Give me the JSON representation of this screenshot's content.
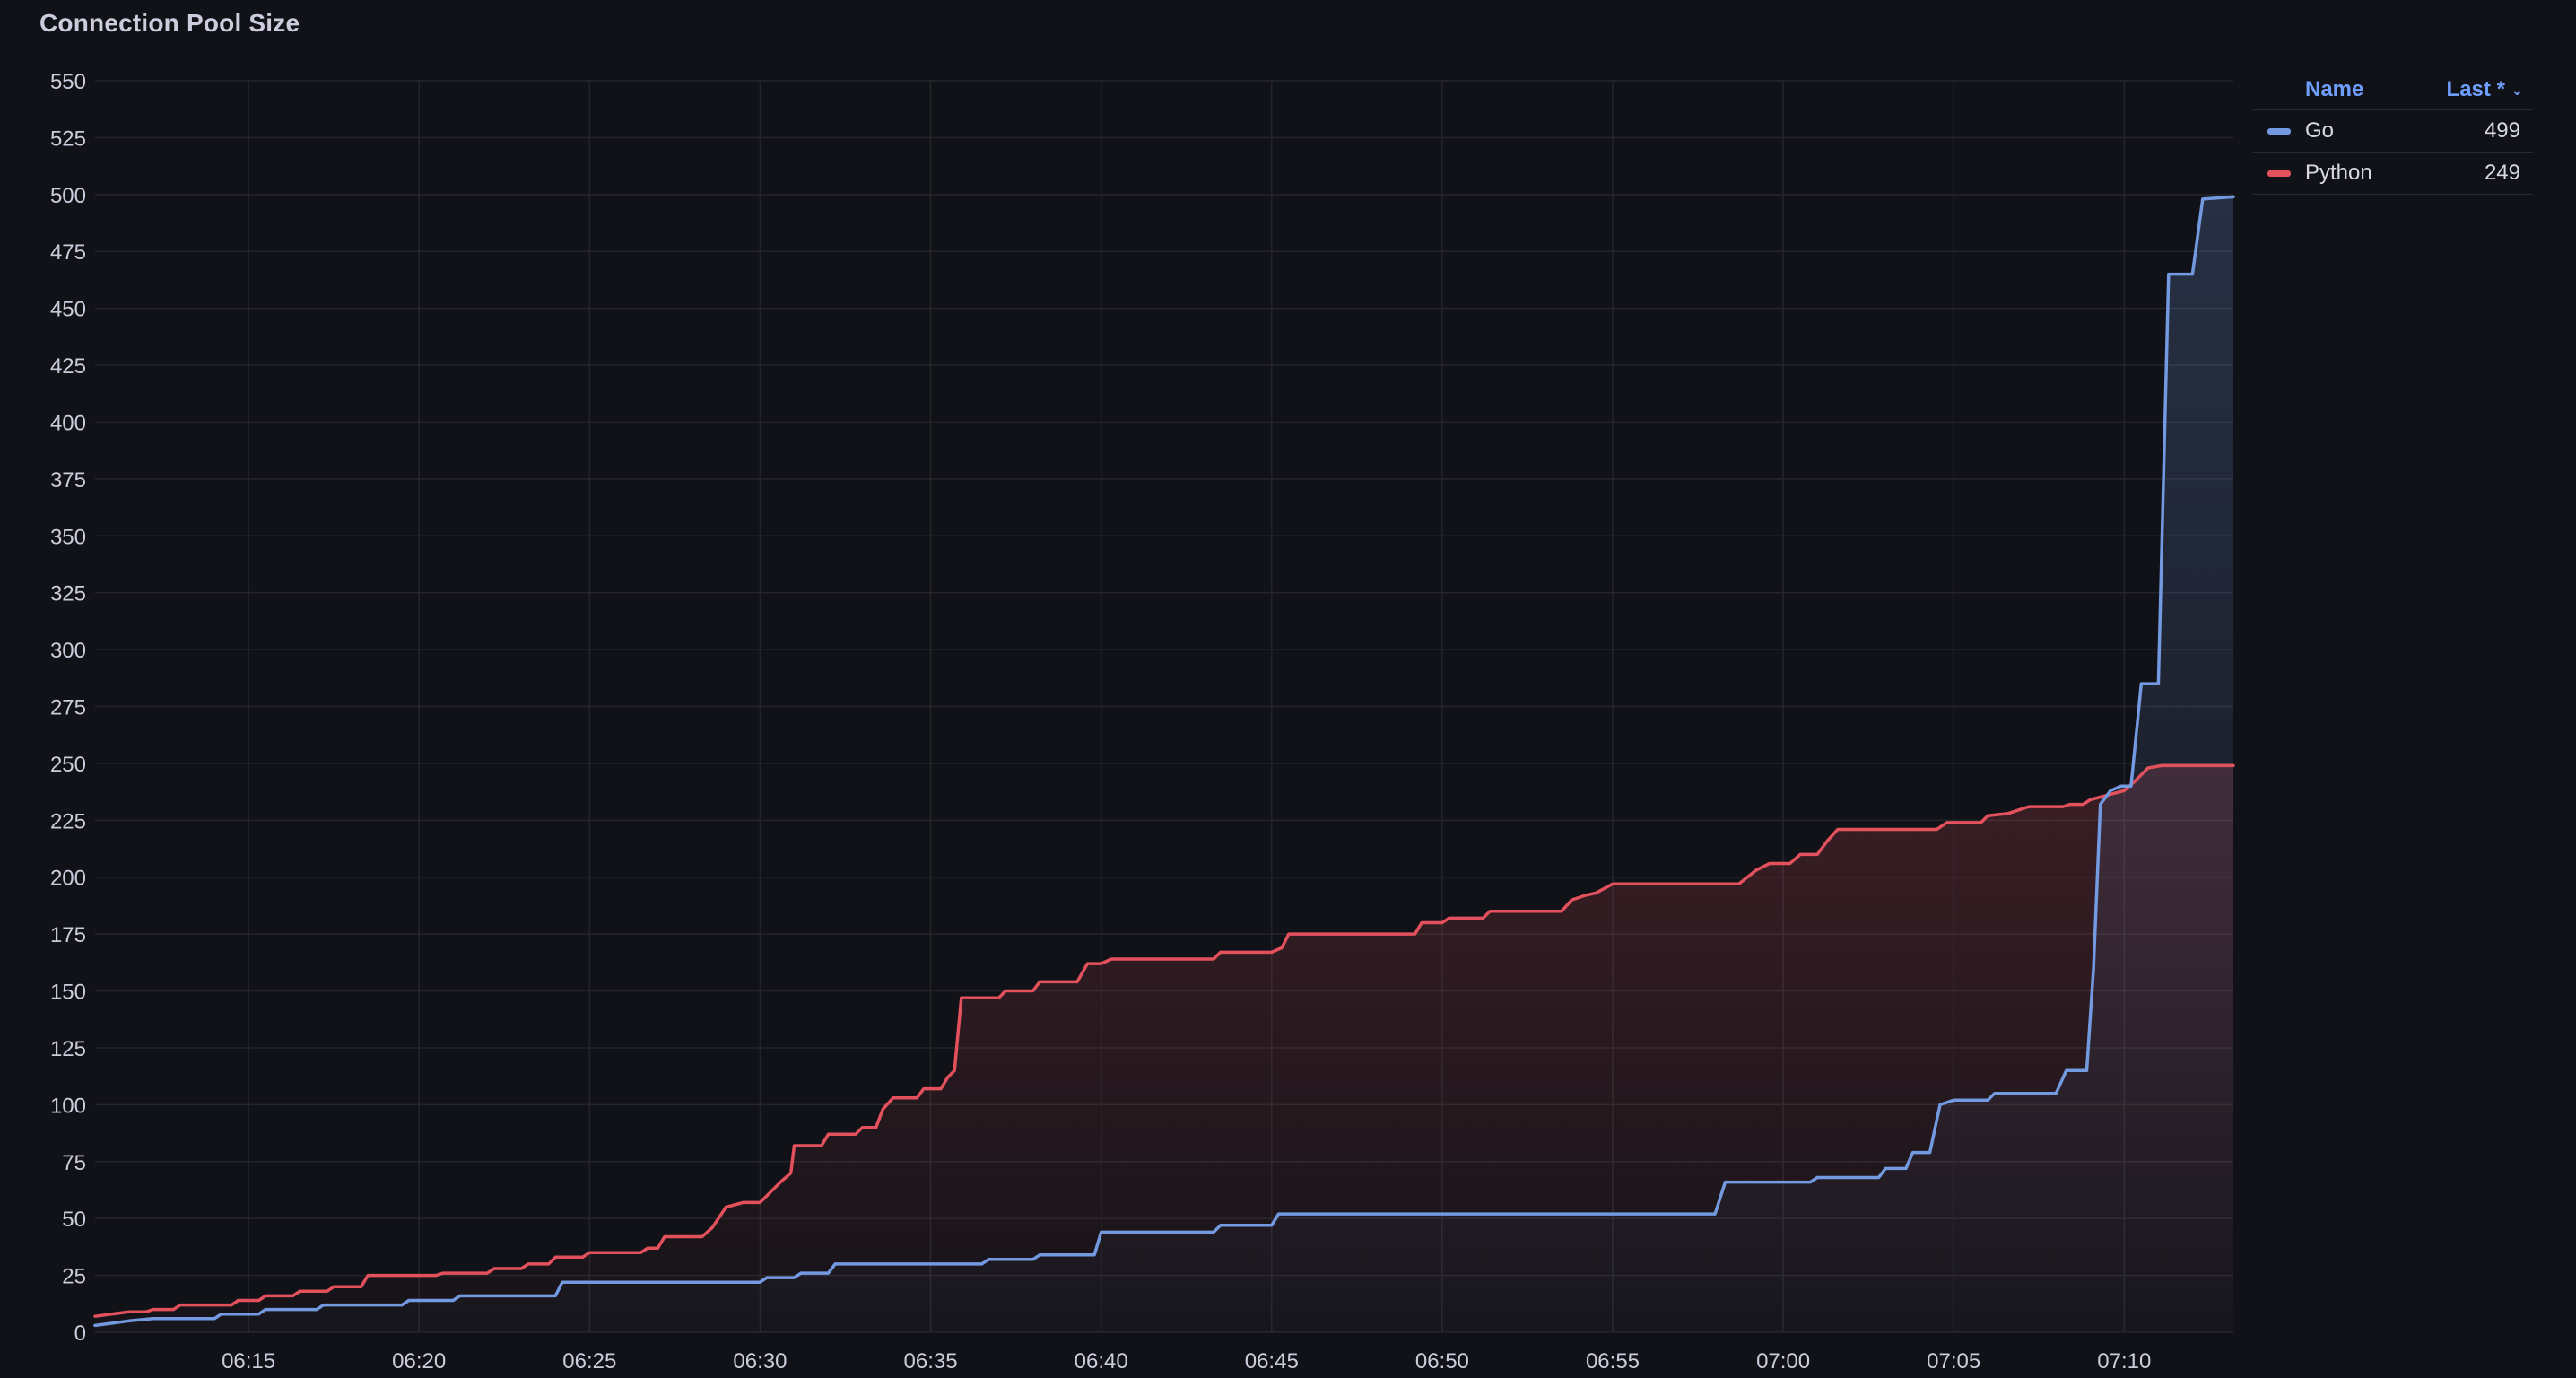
{
  "panel": {
    "title": "Connection Pool Size"
  },
  "legend": {
    "name_header": "Name",
    "last_header": "Last *",
    "sort_icon": "chevron-down-icon",
    "rows": [
      {
        "name": "Go",
        "last": "499",
        "color": "#7399e0"
      },
      {
        "name": "Python",
        "last": "249",
        "color": "#e3515c"
      }
    ]
  },
  "chart_data": {
    "type": "line",
    "x_unit": "time (HH:MM)",
    "xlim": [
      "06:10.5",
      "07:13.2"
    ],
    "ylim": [
      0,
      550
    ],
    "yticks": [
      0,
      25,
      50,
      75,
      100,
      125,
      150,
      175,
      200,
      225,
      250,
      275,
      300,
      325,
      350,
      375,
      400,
      425,
      450,
      475,
      500,
      525,
      550
    ],
    "xticks": [
      "06:15",
      "06:20",
      "06:25",
      "06:30",
      "06:35",
      "06:40",
      "06:45",
      "06:50",
      "06:55",
      "07:00",
      "07:05",
      "07:10"
    ],
    "grid": true,
    "fill": "gradient",
    "legend_position": "right",
    "series": [
      {
        "name": "Go",
        "color": "#7399e0",
        "points": [
          [
            "06:10.5",
            3
          ],
          [
            "06:11.0",
            4
          ],
          [
            "06:11.5",
            5
          ],
          [
            "06:12.2",
            6
          ],
          [
            "06:14.0",
            6
          ],
          [
            "06:14.2",
            8
          ],
          [
            "06:15.3",
            8
          ],
          [
            "06:15.5",
            10
          ],
          [
            "06:17.0",
            10
          ],
          [
            "06:17.2",
            12
          ],
          [
            "06:19.5",
            12
          ],
          [
            "06:19.7",
            14
          ],
          [
            "06:21.0",
            14
          ],
          [
            "06:21.2",
            16
          ],
          [
            "06:24.0",
            16
          ],
          [
            "06:24.2",
            22
          ],
          [
            "06:30.0",
            22
          ],
          [
            "06:30.2",
            24
          ],
          [
            "06:31.0",
            24
          ],
          [
            "06:31.2",
            26
          ],
          [
            "06:32.0",
            26
          ],
          [
            "06:32.2",
            30
          ],
          [
            "06:36.5",
            30
          ],
          [
            "06:36.7",
            32
          ],
          [
            "06:38.0",
            32
          ],
          [
            "06:38.2",
            34
          ],
          [
            "06:39.8",
            34
          ],
          [
            "06:40.0",
            44
          ],
          [
            "06:43.3",
            44
          ],
          [
            "06:43.5",
            47
          ],
          [
            "06:45.0",
            47
          ],
          [
            "06:45.2",
            52
          ],
          [
            "06:58.0",
            52
          ],
          [
            "06:58.3",
            66
          ],
          [
            "07:00.8",
            66
          ],
          [
            "07:01.0",
            68
          ],
          [
            "07:02.8",
            68
          ],
          [
            "07:03.0",
            72
          ],
          [
            "07:03.6",
            72
          ],
          [
            "07:03.8",
            79
          ],
          [
            "07:04.3",
            79
          ],
          [
            "07:04.6",
            100
          ],
          [
            "07:05.0",
            102
          ],
          [
            "07:06.0",
            102
          ],
          [
            "07:06.2",
            105
          ],
          [
            "07:08.0",
            105
          ],
          [
            "07:08.3",
            115
          ],
          [
            "07:08.9",
            115
          ],
          [
            "07:09.1",
            160
          ],
          [
            "07:09.3",
            232
          ],
          [
            "07:09.6",
            238
          ],
          [
            "07:09.9",
            240
          ],
          [
            "07:10.2",
            240
          ],
          [
            "07:10.5",
            285
          ],
          [
            "07:11.0",
            285
          ],
          [
            "07:11.3",
            465
          ],
          [
            "07:12.0",
            465
          ],
          [
            "07:12.3",
            498
          ],
          [
            "07:13.2",
            499
          ]
        ]
      },
      {
        "name": "Python",
        "color": "#e3515c",
        "points": [
          [
            "06:10.5",
            7
          ],
          [
            "06:11.0",
            8
          ],
          [
            "06:11.5",
            9
          ],
          [
            "06:12.0",
            9
          ],
          [
            "06:12.2",
            10
          ],
          [
            "06:12.8",
            10
          ],
          [
            "06:13.0",
            12
          ],
          [
            "06:14.5",
            12
          ],
          [
            "06:14.7",
            14
          ],
          [
            "06:15.3",
            14
          ],
          [
            "06:15.5",
            16
          ],
          [
            "06:16.3",
            16
          ],
          [
            "06:16.5",
            18
          ],
          [
            "06:17.3",
            18
          ],
          [
            "06:17.5",
            20
          ],
          [
            "06:18.3",
            20
          ],
          [
            "06:18.5",
            25
          ],
          [
            "06:20.5",
            25
          ],
          [
            "06:20.7",
            26
          ],
          [
            "06:22.0",
            26
          ],
          [
            "06:22.2",
            28
          ],
          [
            "06:23.0",
            28
          ],
          [
            "06:23.2",
            30
          ],
          [
            "06:23.8",
            30
          ],
          [
            "06:24.0",
            33
          ],
          [
            "06:24.8",
            33
          ],
          [
            "06:25.0",
            35
          ],
          [
            "06:26.5",
            35
          ],
          [
            "06:26.7",
            37
          ],
          [
            "06:27.0",
            37
          ],
          [
            "06:27.2",
            42
          ],
          [
            "06:28.3",
            42
          ],
          [
            "06:28.6",
            46
          ],
          [
            "06:29.0",
            55
          ],
          [
            "06:29.5",
            57
          ],
          [
            "06:30.0",
            57
          ],
          [
            "06:30.2",
            60
          ],
          [
            "06:30.6",
            66
          ],
          [
            "06:30.9",
            70
          ],
          [
            "06:31.0",
            82
          ],
          [
            "06:31.8",
            82
          ],
          [
            "06:32.0",
            87
          ],
          [
            "06:32.8",
            87
          ],
          [
            "06:33.0",
            90
          ],
          [
            "06:33.4",
            90
          ],
          [
            "06:33.6",
            98
          ],
          [
            "06:33.9",
            103
          ],
          [
            "06:34.6",
            103
          ],
          [
            "06:34.8",
            107
          ],
          [
            "06:35.3",
            107
          ],
          [
            "06:35.5",
            112
          ],
          [
            "06:35.7",
            115
          ],
          [
            "06:35.9",
            147
          ],
          [
            "06:37.0",
            147
          ],
          [
            "06:37.2",
            150
          ],
          [
            "06:38.0",
            150
          ],
          [
            "06:38.2",
            154
          ],
          [
            "06:39.3",
            154
          ],
          [
            "06:39.6",
            162
          ],
          [
            "06:40.0",
            162
          ],
          [
            "06:40.3",
            164
          ],
          [
            "06:43.3",
            164
          ],
          [
            "06:43.5",
            167
          ],
          [
            "06:45.0",
            167
          ],
          [
            "06:45.3",
            169
          ],
          [
            "06:45.5",
            175
          ],
          [
            "06:49.2",
            175
          ],
          [
            "06:49.4",
            180
          ],
          [
            "06:50.0",
            180
          ],
          [
            "06:50.2",
            182
          ],
          [
            "06:51.2",
            182
          ],
          [
            "06:51.4",
            185
          ],
          [
            "06:53.5",
            185
          ],
          [
            "06:53.8",
            190
          ],
          [
            "06:54.2",
            192
          ],
          [
            "06:54.5",
            193
          ],
          [
            "06:55.0",
            197
          ],
          [
            "06:58.7",
            197
          ],
          [
            "06:59.2",
            203
          ],
          [
            "06:59.6",
            206
          ],
          [
            "07:00.2",
            206
          ],
          [
            "07:00.5",
            210
          ],
          [
            "07:01.0",
            210
          ],
          [
            "07:01.3",
            216
          ],
          [
            "07:01.6",
            221
          ],
          [
            "07:04.5",
            221
          ],
          [
            "07:04.8",
            224
          ],
          [
            "07:05.8",
            224
          ],
          [
            "07:06.0",
            227
          ],
          [
            "07:06.6",
            228
          ],
          [
            "07:07.2",
            231
          ],
          [
            "07:08.2",
            231
          ],
          [
            "07:08.4",
            232
          ],
          [
            "07:08.8",
            232
          ],
          [
            "07:09.0",
            234
          ],
          [
            "07:09.5",
            236
          ],
          [
            "07:10.0",
            238
          ],
          [
            "07:10.3",
            242
          ],
          [
            "07:10.7",
            248
          ],
          [
            "07:11.1",
            249
          ],
          [
            "07:13.2",
            249
          ]
        ]
      }
    ]
  }
}
